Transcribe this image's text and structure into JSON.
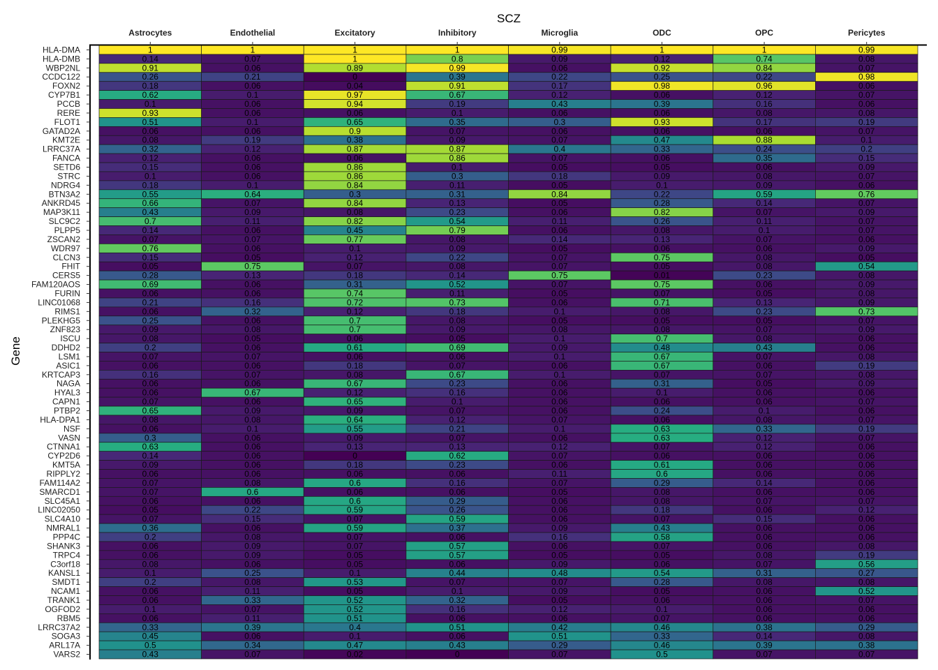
{
  "chart_data": {
    "type": "heatmap",
    "title": "SCZ",
    "xlabel": "",
    "ylabel": "Gene",
    "columns": [
      "Astrocytes",
      "Endothelial",
      "Excitatory",
      "Inhibitory",
      "Microglia",
      "ODC",
      "OPC",
      "Pericytes"
    ],
    "color_scale": "viridis",
    "value_range": [
      0,
      1
    ],
    "legend": "none",
    "rows": [
      {
        "gene": "HLA-DMA",
        "values": [
          "1",
          "1",
          "1",
          "1",
          "0.99",
          "1",
          "1",
          "0.99"
        ]
      },
      {
        "gene": "HLA-DMB",
        "values": [
          "0.14",
          "0.07",
          "1",
          "0.8",
          "0.09",
          "0.12",
          "0.74",
          "0.08"
        ]
      },
      {
        "gene": "WBP2NL",
        "values": [
          "0.91",
          "0.06",
          "0.89",
          "0.99",
          "0.06",
          "0.92",
          "0.84",
          "0.07"
        ]
      },
      {
        "gene": "CCDC122",
        "values": [
          "0.26",
          "0.21",
          "0",
          "0.39",
          "0.22",
          "0.25",
          "0.22",
          "0.98"
        ]
      },
      {
        "gene": "FOXN2",
        "values": [
          "0.18",
          "0.06",
          "0.04",
          "0.91",
          "0.17",
          "0.98",
          "0.96",
          "0.06"
        ]
      },
      {
        "gene": "CYP7B1",
        "values": [
          "0.62",
          "0.1",
          "0.97",
          "0.67",
          "0.12",
          "0.06",
          "0.12",
          "0.07"
        ]
      },
      {
        "gene": "PCCB",
        "values": [
          "0.1",
          "0.06",
          "0.94",
          "0.19",
          "0.43",
          "0.39",
          "0.16",
          "0.06"
        ]
      },
      {
        "gene": "RERE",
        "values": [
          "0.93",
          "0.06",
          "0.06",
          "0.1",
          "0.06",
          "0.06",
          "0.08",
          "0.08"
        ]
      },
      {
        "gene": "FLOT1",
        "values": [
          "0.51",
          "0.1",
          "0.65",
          "0.35",
          "0.3",
          "0.93",
          "0.17",
          "0.19"
        ]
      },
      {
        "gene": "GATAD2A",
        "values": [
          "0.06",
          "0.06",
          "0.9",
          "0.07",
          "0.06",
          "0.06",
          "0.06",
          "0.07"
        ]
      },
      {
        "gene": "KMT2E",
        "values": [
          "0.08",
          "0.19",
          "0.38",
          "0.09",
          "0.07",
          "0.47",
          "0.88",
          "0.1"
        ]
      },
      {
        "gene": "LRRC37A",
        "values": [
          "0.32",
          "0.12",
          "0.87",
          "0.87",
          "0.4",
          "0.33",
          "0.24",
          "0.2"
        ]
      },
      {
        "gene": "FANCA",
        "values": [
          "0.12",
          "0.06",
          "0.06",
          "0.86",
          "0.07",
          "0.06",
          "0.35",
          "0.15"
        ]
      },
      {
        "gene": "SETD6",
        "values": [
          "0.15",
          "0.06",
          "0.86",
          "0.1",
          "0.05",
          "0.05",
          "0.06",
          "0.09"
        ]
      },
      {
        "gene": "STRC",
        "values": [
          "0.1",
          "0.06",
          "0.86",
          "0.3",
          "0.18",
          "0.09",
          "0.08",
          "0.07"
        ]
      },
      {
        "gene": "NDRG4",
        "values": [
          "0.18",
          "0.1",
          "0.84",
          "0.11",
          "0.05",
          "0.1",
          "0.09",
          "0.06"
        ]
      },
      {
        "gene": "BTN3A2",
        "values": [
          "0.55",
          "0.64",
          "0.3",
          "0.31",
          "0.84",
          "0.22",
          "0.59",
          "0.76"
        ]
      },
      {
        "gene": "ANKRD45",
        "values": [
          "0.66",
          "0.07",
          "0.84",
          "0.13",
          "0.05",
          "0.28",
          "0.14",
          "0.07"
        ]
      },
      {
        "gene": "MAP3K11",
        "values": [
          "0.43",
          "0.09",
          "0.08",
          "0.23",
          "0.06",
          "0.82",
          "0.07",
          "0.09"
        ]
      },
      {
        "gene": "SLC9C2",
        "values": [
          "0.7",
          "0.11",
          "0.82",
          "0.54",
          "0.11",
          "0.26",
          "0.11",
          "0.07"
        ]
      },
      {
        "gene": "PLPP5",
        "values": [
          "0.14",
          "0.06",
          "0.45",
          "0.79",
          "0.06",
          "0.08",
          "0.1",
          "0.07"
        ]
      },
      {
        "gene": "ZSCAN2",
        "values": [
          "0.07",
          "0.07",
          "0.77",
          "0.08",
          "0.14",
          "0.13",
          "0.07",
          "0.06"
        ]
      },
      {
        "gene": "WDR97",
        "values": [
          "0.76",
          "0.06",
          "0.1",
          "0.09",
          "0.05",
          "0.06",
          "0.06",
          "0.09"
        ]
      },
      {
        "gene": "CLCN3",
        "values": [
          "0.15",
          "0.05",
          "0.12",
          "0.22",
          "0.07",
          "0.75",
          "0.08",
          "0.05"
        ]
      },
      {
        "gene": "FHIT",
        "values": [
          "0.05",
          "0.75",
          "0.07",
          "0.08",
          "0.07",
          "0.05",
          "0.08",
          "0.54"
        ]
      },
      {
        "gene": "CERS5",
        "values": [
          "0.28",
          "0.13",
          "0.18",
          "0.14",
          "0.75",
          "0.01",
          "0.23",
          "0.08"
        ]
      },
      {
        "gene": "FAM120AOS",
        "values": [
          "0.69",
          "0.06",
          "0.31",
          "0.52",
          "0.07",
          "0.75",
          "0.06",
          "0.09"
        ]
      },
      {
        "gene": "FURIN",
        "values": [
          "0.06",
          "0.06",
          "0.74",
          "0.11",
          "0.05",
          "0.07",
          "0.05",
          "0.08"
        ]
      },
      {
        "gene": "LINC01068",
        "values": [
          "0.21",
          "0.16",
          "0.72",
          "0.73",
          "0.06",
          "0.71",
          "0.13",
          "0.09"
        ]
      },
      {
        "gene": "RIMS1",
        "values": [
          "0.06",
          "0.32",
          "0.12",
          "0.18",
          "0.1",
          "0.08",
          "0.23",
          "0.73"
        ]
      },
      {
        "gene": "PLEKHG5",
        "values": [
          "0.25",
          "0.06",
          "0.7",
          "0.08",
          "0.05",
          "0.05",
          "0.05",
          "0.07"
        ]
      },
      {
        "gene": "ZNF823",
        "values": [
          "0.09",
          "0.08",
          "0.7",
          "0.09",
          "0.08",
          "0.08",
          "0.07",
          "0.09"
        ]
      },
      {
        "gene": "ISCU",
        "values": [
          "0.08",
          "0.05",
          "0.06",
          "0.05",
          "0.1",
          "0.7",
          "0.08",
          "0.06"
        ]
      },
      {
        "gene": "DDHD2",
        "values": [
          "0.2",
          "0.06",
          "0.61",
          "0.69",
          "0.09",
          "0.48",
          "0.43",
          "0.06"
        ]
      },
      {
        "gene": "LSM1",
        "values": [
          "0.07",
          "0.07",
          "0.06",
          "0.06",
          "0.1",
          "0.67",
          "0.07",
          "0.08"
        ]
      },
      {
        "gene": "ASIC1",
        "values": [
          "0.06",
          "0.06",
          "0.18",
          "0.07",
          "0.06",
          "0.67",
          "0.06",
          "0.19"
        ]
      },
      {
        "gene": "KRTCAP3",
        "values": [
          "0.16",
          "0.07",
          "0.08",
          "0.67",
          "0.1",
          "0.07",
          "0.07",
          "0.08"
        ]
      },
      {
        "gene": "NAGA",
        "values": [
          "0.06",
          "0.06",
          "0.67",
          "0.23",
          "0.06",
          "0.31",
          "0.05",
          "0.09"
        ]
      },
      {
        "gene": "HYAL3",
        "values": [
          "0.06",
          "0.67",
          "0.12",
          "0.16",
          "0.06",
          "0.1",
          "0.06",
          "0.06"
        ]
      },
      {
        "gene": "CAPN1",
        "values": [
          "0.07",
          "0.06",
          "0.65",
          "0.1",
          "0.06",
          "0.06",
          "0.06",
          "0.07"
        ]
      },
      {
        "gene": "PTBP2",
        "values": [
          "0.65",
          "0.09",
          "0.09",
          "0.07",
          "0.06",
          "0.24",
          "0.1",
          "0.06"
        ]
      },
      {
        "gene": "HLA-DPA1",
        "values": [
          "0.08",
          "0.08",
          "0.64",
          "0.12",
          "0.07",
          "0.06",
          "0.08",
          "0.07"
        ]
      },
      {
        "gene": "NSF",
        "values": [
          "0.06",
          "0.1",
          "0.55",
          "0.21",
          "0.1",
          "0.63",
          "0.33",
          "0.19"
        ]
      },
      {
        "gene": "VASN",
        "values": [
          "0.3",
          "0.06",
          "0.09",
          "0.07",
          "0.06",
          "0.63",
          "0.12",
          "0.07"
        ]
      },
      {
        "gene": "CTNNA1",
        "values": [
          "0.63",
          "0.06",
          "0.13",
          "0.13",
          "0.12",
          "0.07",
          "0.12",
          "0.06"
        ]
      },
      {
        "gene": "CYP2D6",
        "values": [
          "0.14",
          "0.06",
          "0",
          "0.62",
          "0.07",
          "0.06",
          "0.06",
          "0.06"
        ]
      },
      {
        "gene": "KMT5A",
        "values": [
          "0.09",
          "0.06",
          "0.18",
          "0.23",
          "0.06",
          "0.61",
          "0.06",
          "0.06"
        ]
      },
      {
        "gene": "RIPPLY2",
        "values": [
          "0.06",
          "0.06",
          "0.06",
          "0.06",
          "0.11",
          "0.6",
          "0.06",
          "0.06"
        ]
      },
      {
        "gene": "FAM114A2",
        "values": [
          "0.07",
          "0.08",
          "0.6",
          "0.16",
          "0.07",
          "0.29",
          "0.14",
          "0.06"
        ]
      },
      {
        "gene": "SMARCD1",
        "values": [
          "0.07",
          "0.6",
          "0.06",
          "0.06",
          "0.05",
          "0.08",
          "0.06",
          "0.06"
        ]
      },
      {
        "gene": "SLC45A1",
        "values": [
          "0.06",
          "0.06",
          "0.6",
          "0.29",
          "0.06",
          "0.08",
          "0.07",
          "0.07"
        ]
      },
      {
        "gene": "LINC02050",
        "values": [
          "0.05",
          "0.22",
          "0.59",
          "0.26",
          "0.06",
          "0.18",
          "0.06",
          "0.12"
        ]
      },
      {
        "gene": "SLC4A10",
        "values": [
          "0.07",
          "0.15",
          "0.07",
          "0.59",
          "0.06",
          "0.07",
          "0.15",
          "0.06"
        ]
      },
      {
        "gene": "NMRAL1",
        "values": [
          "0.36",
          "0.06",
          "0.59",
          "0.37",
          "0.09",
          "0.43",
          "0.06",
          "0.06"
        ]
      },
      {
        "gene": "PPP4C",
        "values": [
          "0.2",
          "0.08",
          "0.07",
          "0.06",
          "0.16",
          "0.58",
          "0.06",
          "0.06"
        ]
      },
      {
        "gene": "SHANK3",
        "values": [
          "0.06",
          "0.09",
          "0.07",
          "0.57",
          "0.06",
          "0.07",
          "0.06",
          "0.08"
        ]
      },
      {
        "gene": "TRPC4",
        "values": [
          "0.06",
          "0.09",
          "0.05",
          "0.57",
          "0.05",
          "0.05",
          "0.08",
          "0.19"
        ]
      },
      {
        "gene": "C3orf18",
        "values": [
          "0.08",
          "0.06",
          "0.05",
          "0.06",
          "0.09",
          "0.06",
          "0.07",
          "0.56"
        ]
      },
      {
        "gene": "KANSL1",
        "values": [
          "0.1",
          "0.25",
          "0.1",
          "0.44",
          "0.48",
          "0.54",
          "0.31",
          "0.27"
        ]
      },
      {
        "gene": "SMDT1",
        "values": [
          "0.2",
          "0.08",
          "0.53",
          "0.07",
          "0.07",
          "0.28",
          "0.08",
          "0.08"
        ]
      },
      {
        "gene": "NCAM1",
        "values": [
          "0.06",
          "0.11",
          "0.05",
          "0.1",
          "0.09",
          "0.05",
          "0.06",
          "0.52"
        ]
      },
      {
        "gene": "TRANK1",
        "values": [
          "0.06",
          "0.33",
          "0.52",
          "0.32",
          "0.05",
          "0.06",
          "0.06",
          "0.07"
        ]
      },
      {
        "gene": "OGFOD2",
        "values": [
          "0.1",
          "0.07",
          "0.52",
          "0.16",
          "0.12",
          "0.1",
          "0.06",
          "0.06"
        ]
      },
      {
        "gene": "RBM5",
        "values": [
          "0.06",
          "0.11",
          "0.51",
          "0.06",
          "0.06",
          "0.07",
          "0.06",
          "0.06"
        ]
      },
      {
        "gene": "LRRC37A2",
        "values": [
          "0.33",
          "0.39",
          "0.4",
          "0.51",
          "0.42",
          "0.46",
          "0.38",
          "0.29"
        ]
      },
      {
        "gene": "SOGA3",
        "values": [
          "0.45",
          "0.06",
          "0.1",
          "0.06",
          "0.51",
          "0.33",
          "0.14",
          "0.08"
        ]
      },
      {
        "gene": "ARL17A",
        "values": [
          "0.5",
          "0.34",
          "0.47",
          "0.43",
          "0.29",
          "0.46",
          "0.39",
          "0.38"
        ]
      },
      {
        "gene": "VARS2",
        "values": [
          "0.43",
          "0.07",
          "0.02",
          "0",
          "0.07",
          "0.5",
          "0.07",
          "0.07"
        ]
      }
    ]
  }
}
